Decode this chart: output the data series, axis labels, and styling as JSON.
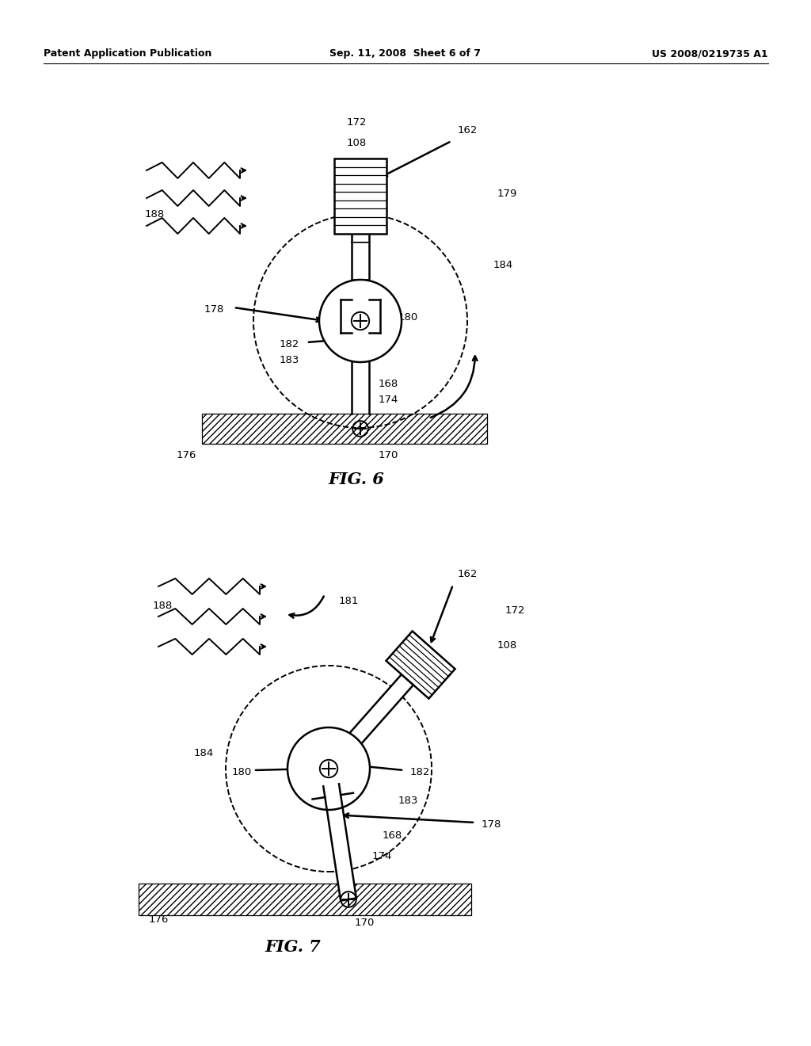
{
  "title_left": "Patent Application Publication",
  "title_center": "Sep. 11, 2008  Sheet 6 of 7",
  "title_right": "US 2008/0219735 A1",
  "fig6_label": "FIG. 6",
  "fig7_label": "FIG. 7",
  "background_color": "#ffffff"
}
